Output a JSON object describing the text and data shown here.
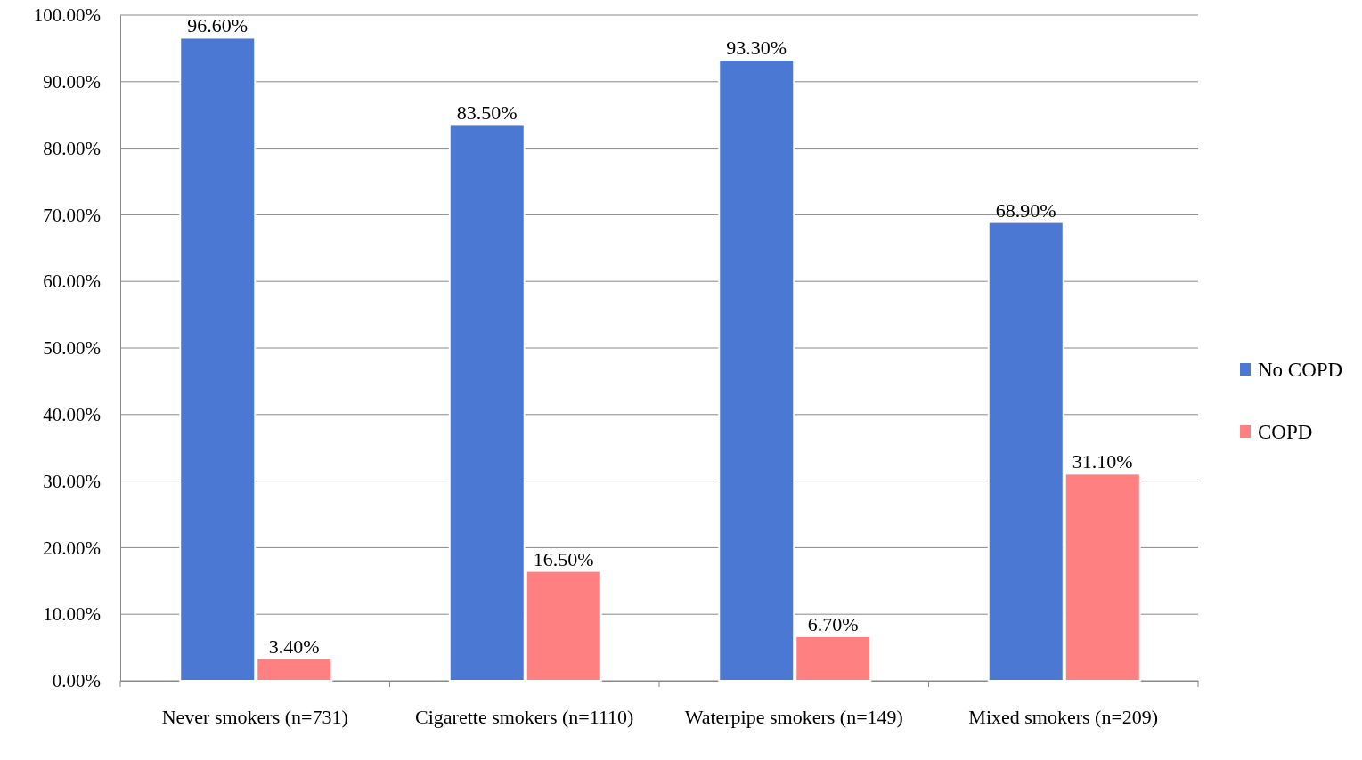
{
  "chart_data": {
    "type": "bar",
    "categories": [
      "Never smokers (n=731)",
      "Cigarette smokers (n=1110)",
      "Waterpipe smokers (n=149)",
      "Mixed smokers (n=209)"
    ],
    "series": [
      {
        "name": "No COPD",
        "color": "#4a78d2",
        "values": [
          96.6,
          83.5,
          93.3,
          68.9
        ],
        "value_labels": [
          "96.60%",
          "83.50%",
          "93.30%",
          "68.90%"
        ]
      },
      {
        "name": "COPD",
        "color": "#ff8080",
        "values": [
          3.4,
          16.5,
          6.7,
          31.1
        ],
        "value_labels": [
          "3.40%",
          "16.50%",
          "6.70%",
          "31.10%"
        ]
      }
    ],
    "ylim": [
      0,
      100
    ],
    "yticks": [
      {
        "value": 0,
        "label": "0.00%"
      },
      {
        "value": 10,
        "label": "10.00%"
      },
      {
        "value": 20,
        "label": "20.00%"
      },
      {
        "value": 30,
        "label": "30.00%"
      },
      {
        "value": 40,
        "label": "40.00%"
      },
      {
        "value": 50,
        "label": "50.00%"
      },
      {
        "value": 60,
        "label": "60.00%"
      },
      {
        "value": 70,
        "label": "70.00%"
      },
      {
        "value": 80,
        "label": "80.00%"
      },
      {
        "value": 90,
        "label": "90.00%"
      },
      {
        "value": 100,
        "label": "100.00%"
      }
    ],
    "grid": "y",
    "legend": "right"
  }
}
